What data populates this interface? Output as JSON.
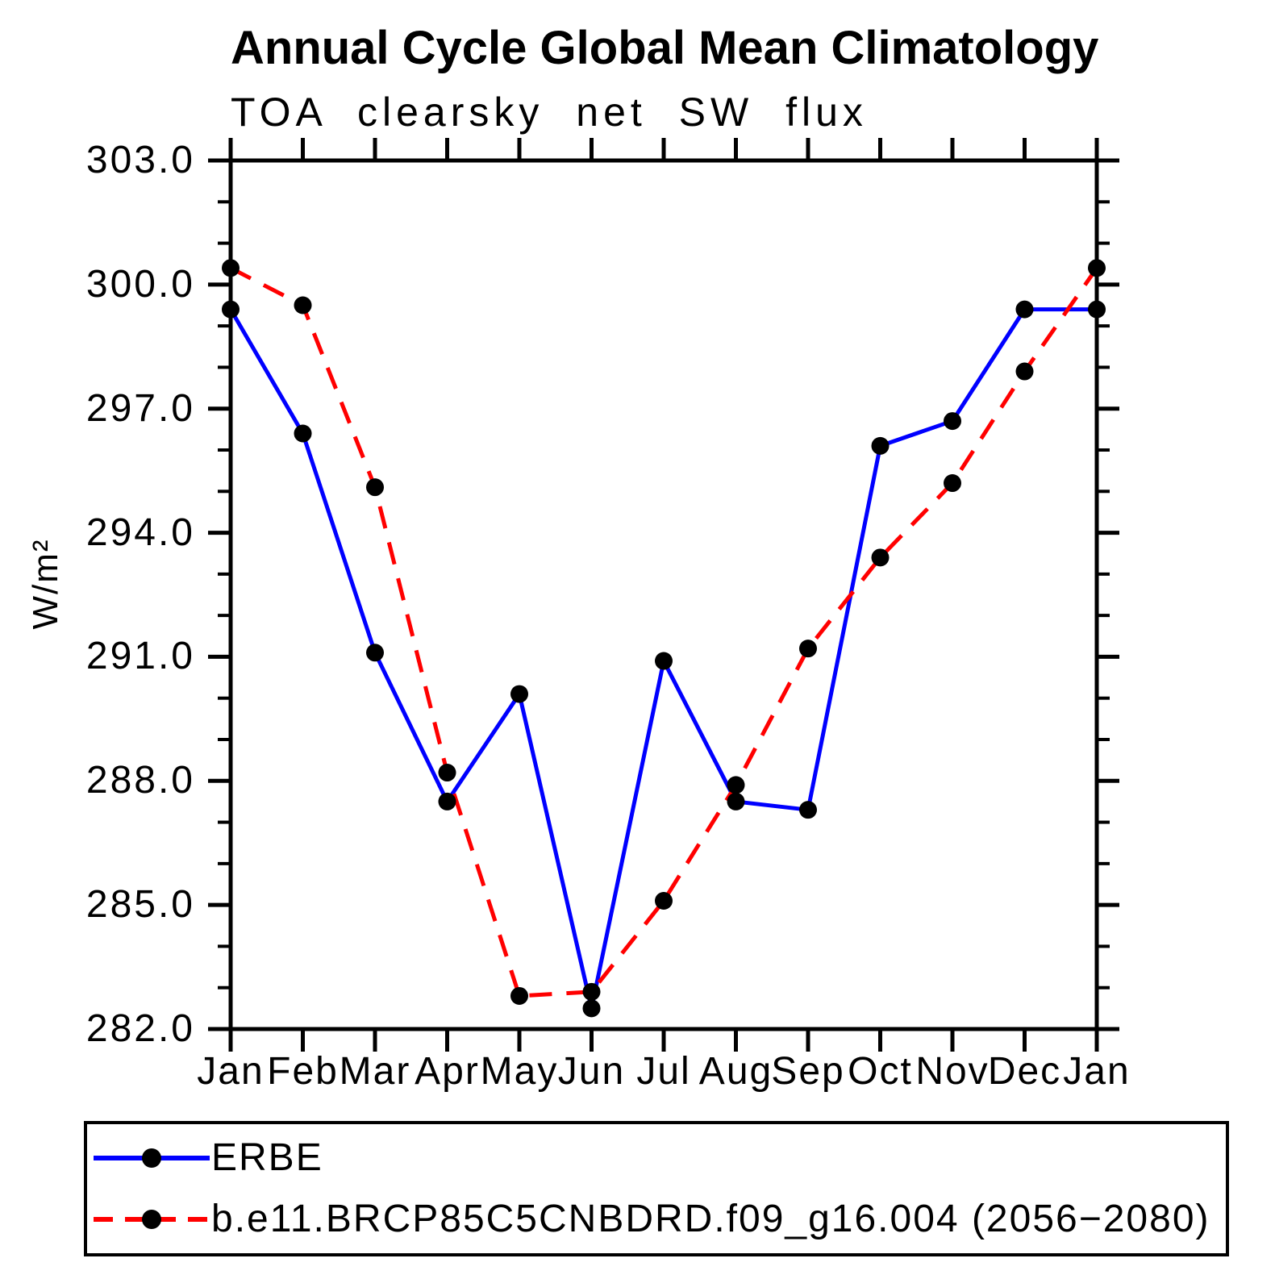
{
  "chart_data": {
    "type": "line",
    "title": "Annual Cycle Global Mean Climatology",
    "subtitle": "TOA clearsky net SW flux",
    "ylabel": "W/m²",
    "categories": [
      "Jan",
      "Feb",
      "Mar",
      "Apr",
      "May",
      "Jun",
      "Jul",
      "Aug",
      "Sep",
      "Oct",
      "Nov",
      "Dec",
      "Jan"
    ],
    "y_tick_labels": [
      "303.0",
      "300.0",
      "297.0",
      "294.0",
      "291.0",
      "288.0",
      "285.0",
      "282.0"
    ],
    "ylim": [
      282.0,
      303.0
    ],
    "major_tick_interval": 3.0,
    "minor_tick_interval": 1.0,
    "grid": false,
    "legend_position": "bottom",
    "axis_color": "#000000",
    "marker_color": "#000000",
    "series": [
      {
        "name": "ERBE",
        "color": "#0000ff",
        "style": "solid",
        "marker": "circle",
        "values": [
          299.4,
          296.4,
          291.1,
          287.5,
          290.1,
          282.5,
          290.9,
          287.5,
          287.3,
          296.1,
          296.7,
          299.4,
          299.4
        ]
      },
      {
        "name": "b.e11.BRCP85C5CNBDRD.f09_g16.004 (2056−2080)",
        "color": "#ff0000",
        "style": "dashed",
        "marker": "circle",
        "values": [
          300.4,
          299.5,
          295.1,
          288.2,
          282.8,
          282.9,
          285.1,
          287.9,
          291.2,
          293.4,
          295.2,
          297.9,
          300.4
        ]
      }
    ]
  }
}
